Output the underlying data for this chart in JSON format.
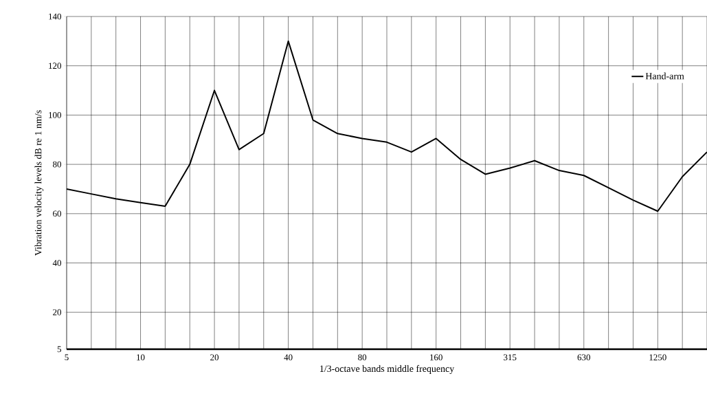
{
  "chart_data": {
    "type": "line",
    "xlabel": "1/3-octave bands middle frequency",
    "ylabel": "Vibration velocity levels dB re 1 nm/s",
    "categories": [
      "5",
      null,
      null,
      "10",
      null,
      null,
      "20",
      null,
      null,
      "40",
      null,
      null,
      "80",
      null,
      null,
      "160",
      null,
      null,
      "315",
      null,
      null,
      "630",
      null,
      null,
      "1250",
      null,
      null
    ],
    "series": [
      {
        "name": "Hand-arm",
        "color": "#000000",
        "values": [
          70,
          68,
          66,
          64.5,
          63,
          80,
          110,
          86,
          92.5,
          130,
          98,
          92.5,
          90.5,
          89,
          85,
          90.5,
          82,
          76,
          78.5,
          81.5,
          77.5,
          75.5,
          70.5,
          65.5,
          61,
          75,
          85
        ]
      }
    ],
    "ylim": [
      5,
      140
    ],
    "yticks": [
      5,
      20,
      40,
      60,
      80,
      100,
      120,
      140
    ],
    "grid": true,
    "legend": "top right",
    "marker": "none",
    "line_style": "solid"
  }
}
